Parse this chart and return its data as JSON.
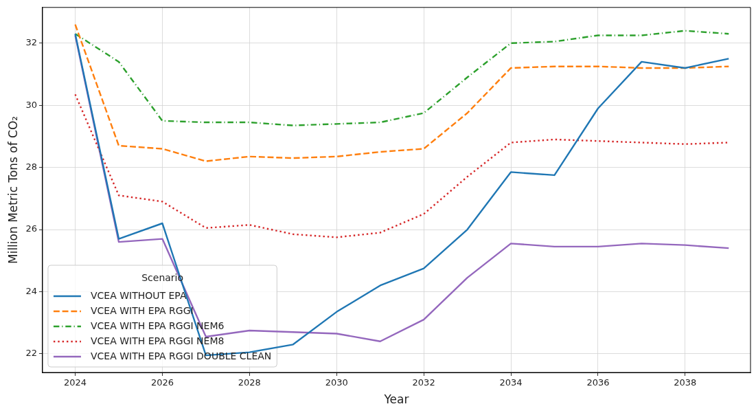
{
  "chart_data": {
    "type": "line",
    "xlabel": "Year",
    "ylabel": "Million Metric Tons of CO₂",
    "legend_title": "Scenario",
    "legend": "bottom left",
    "grid": true,
    "x": [
      2024,
      2025,
      2026,
      2027,
      2028,
      2029,
      2030,
      2031,
      2032,
      2033,
      2034,
      2035,
      2036,
      2037,
      2038,
      2039
    ],
    "xlim": [
      2023.25,
      2039.5
    ],
    "xticks": [
      2024,
      2026,
      2028,
      2030,
      2032,
      2034,
      2036,
      2038
    ],
    "ylim": [
      21.4,
      33.15
    ],
    "yticks": [
      22,
      24,
      26,
      28,
      30,
      32
    ],
    "series": [
      {
        "name": "VCEA WITHOUT EPA",
        "color": "#1f77b4",
        "line_style": "solid",
        "values": [
          32.3,
          25.7,
          26.2,
          21.95,
          22.05,
          22.3,
          23.35,
          24.2,
          24.75,
          26.0,
          27.85,
          27.75,
          29.9,
          31.4,
          31.2,
          31.5
        ]
      },
      {
        "name": "VCEA WITH EPA RGGI",
        "color": "#ff7f0e",
        "line_style": "dashed",
        "values": [
          32.6,
          28.7,
          28.6,
          28.2,
          28.35,
          28.3,
          28.35,
          28.5,
          28.6,
          29.75,
          31.2,
          31.25,
          31.25,
          31.2,
          31.2,
          31.25
        ]
      },
      {
        "name": "VCEA WITH EPA RGGI NEM6",
        "color": "#2ca02c",
        "line_style": "dashdot",
        "values": [
          32.3,
          31.4,
          29.5,
          29.45,
          29.45,
          29.35,
          29.4,
          29.45,
          29.75,
          30.9,
          32.0,
          32.05,
          32.25,
          32.25,
          32.4,
          32.3
        ]
      },
      {
        "name": "VCEA WITH EPA RGGI NEM8",
        "color": "#d62728",
        "line_style": "dotted",
        "values": [
          30.35,
          27.1,
          26.9,
          26.05,
          26.15,
          25.85,
          25.75,
          25.9,
          26.5,
          27.7,
          28.8,
          28.9,
          28.85,
          28.8,
          28.75,
          28.8
        ]
      },
      {
        "name": "VCEA WITH EPA RGGI DOUBLE CLEAN",
        "color": "#9467bd",
        "line_style": "solid",
        "values": [
          32.25,
          25.6,
          25.7,
          22.55,
          22.75,
          22.7,
          22.65,
          22.4,
          23.1,
          24.45,
          25.55,
          25.45,
          25.45,
          25.55,
          25.5,
          25.4
        ]
      }
    ]
  }
}
